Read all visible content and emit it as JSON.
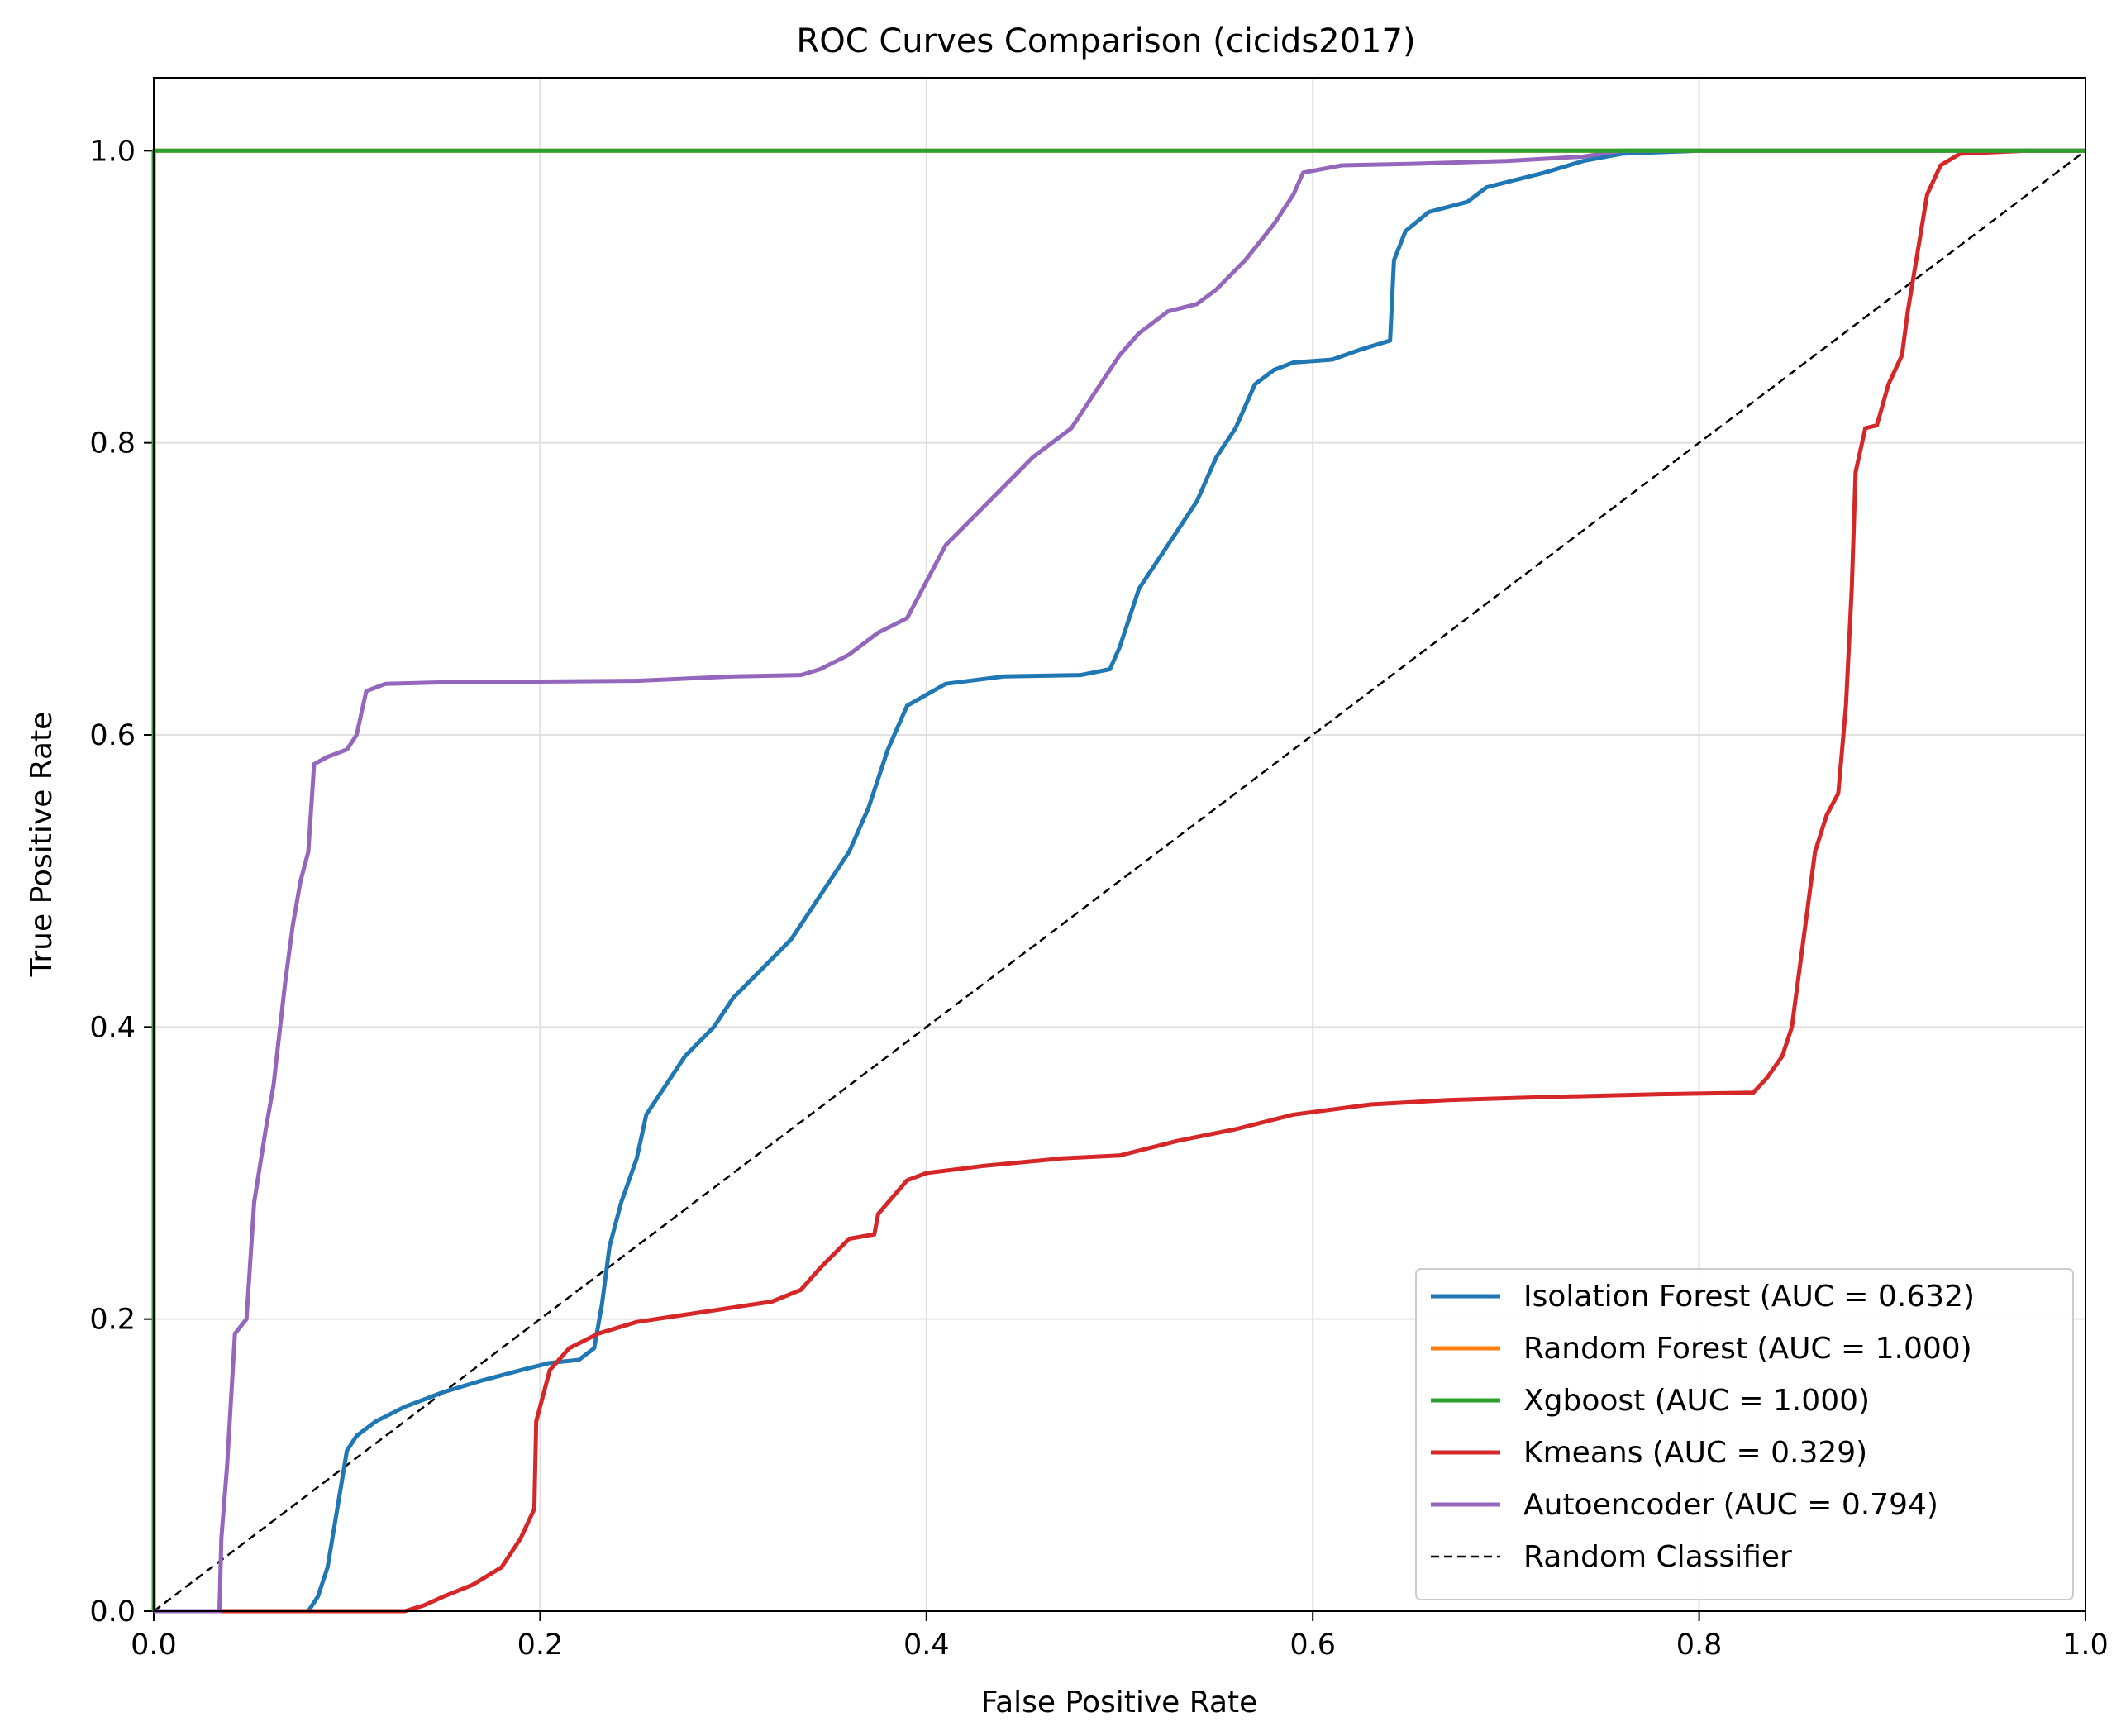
{
  "chart_data": {
    "type": "line",
    "title": "ROC Curves Comparison (cicids2017)",
    "xlabel": "False Positive Rate",
    "ylabel": "True Positive Rate",
    "xlim": [
      0.0,
      1.0
    ],
    "ylim": [
      0.0,
      1.05
    ],
    "xticks": [
      0.0,
      0.2,
      0.4,
      0.6,
      0.8,
      1.0
    ],
    "yticks": [
      0.0,
      0.2,
      0.4,
      0.6,
      0.8,
      1.0
    ],
    "xtick_labels": [
      "0.0",
      "0.2",
      "0.4",
      "0.6",
      "0.8",
      "1.0"
    ],
    "ytick_labels": [
      "0.0",
      "0.2",
      "0.4",
      "0.6",
      "0.8",
      "1.0"
    ],
    "grid": true,
    "legend_position": "lower-right",
    "series": [
      {
        "name": "Isolation Forest (AUC = 0.632)",
        "color": "#1f77b4",
        "dash": "solid",
        "points": [
          [
            0,
            0
          ],
          [
            0.08,
            0
          ],
          [
            0.085,
            0.01
          ],
          [
            0.09,
            0.03
          ],
          [
            0.095,
            0.07
          ],
          [
            0.1,
            0.11
          ],
          [
            0.105,
            0.12
          ],
          [
            0.115,
            0.13
          ],
          [
            0.13,
            0.14
          ],
          [
            0.15,
            0.15
          ],
          [
            0.17,
            0.158
          ],
          [
            0.19,
            0.165
          ],
          [
            0.205,
            0.17
          ],
          [
            0.22,
            0.172
          ],
          [
            0.228,
            0.18
          ],
          [
            0.232,
            0.21
          ],
          [
            0.236,
            0.25
          ],
          [
            0.242,
            0.28
          ],
          [
            0.25,
            0.31
          ],
          [
            0.255,
            0.34
          ],
          [
            0.265,
            0.36
          ],
          [
            0.275,
            0.38
          ],
          [
            0.29,
            0.4
          ],
          [
            0.3,
            0.42
          ],
          [
            0.315,
            0.44
          ],
          [
            0.33,
            0.46
          ],
          [
            0.345,
            0.49
          ],
          [
            0.36,
            0.52
          ],
          [
            0.37,
            0.55
          ],
          [
            0.38,
            0.59
          ],
          [
            0.39,
            0.62
          ],
          [
            0.41,
            0.635
          ],
          [
            0.44,
            0.64
          ],
          [
            0.48,
            0.641
          ],
          [
            0.495,
            0.645
          ],
          [
            0.5,
            0.66
          ],
          [
            0.51,
            0.7
          ],
          [
            0.52,
            0.72
          ],
          [
            0.53,
            0.74
          ],
          [
            0.54,
            0.76
          ],
          [
            0.55,
            0.79
          ],
          [
            0.56,
            0.81
          ],
          [
            0.57,
            0.84
          ],
          [
            0.58,
            0.85
          ],
          [
            0.59,
            0.855
          ],
          [
            0.61,
            0.857
          ],
          [
            0.625,
            0.864
          ],
          [
            0.64,
            0.87
          ],
          [
            0.642,
            0.925
          ],
          [
            0.648,
            0.945
          ],
          [
            0.66,
            0.958
          ],
          [
            0.68,
            0.965
          ],
          [
            0.69,
            0.975
          ],
          [
            0.72,
            0.985
          ],
          [
            0.74,
            0.993
          ],
          [
            0.76,
            0.998
          ],
          [
            0.8,
            1.0
          ],
          [
            1.0,
            1.0
          ]
        ]
      },
      {
        "name": "Random Forest (AUC = 1.000)",
        "color": "#ff7f0e",
        "dash": "solid",
        "points": [
          [
            0,
            0
          ],
          [
            0,
            1.0
          ],
          [
            1.0,
            1.0
          ]
        ]
      },
      {
        "name": "Xgboost (AUC = 1.000)",
        "color": "#2ca02c",
        "dash": "solid",
        "points": [
          [
            0,
            0
          ],
          [
            0,
            1.0
          ],
          [
            1.0,
            1.0
          ]
        ]
      },
      {
        "name": "Kmeans (AUC = 0.329)",
        "color": "#d62728",
        "dash": "solid",
        "points": [
          [
            0,
            0
          ],
          [
            0.13,
            0
          ],
          [
            0.14,
            0.004
          ],
          [
            0.15,
            0.01
          ],
          [
            0.165,
            0.018
          ],
          [
            0.18,
            0.03
          ],
          [
            0.19,
            0.05
          ],
          [
            0.197,
            0.07
          ],
          [
            0.198,
            0.13
          ],
          [
            0.205,
            0.165
          ],
          [
            0.215,
            0.18
          ],
          [
            0.23,
            0.19
          ],
          [
            0.25,
            0.198
          ],
          [
            0.27,
            0.202
          ],
          [
            0.29,
            0.206
          ],
          [
            0.32,
            0.212
          ],
          [
            0.335,
            0.22
          ],
          [
            0.345,
            0.235
          ],
          [
            0.36,
            0.255
          ],
          [
            0.373,
            0.258
          ],
          [
            0.375,
            0.272
          ],
          [
            0.39,
            0.295
          ],
          [
            0.4,
            0.3
          ],
          [
            0.43,
            0.305
          ],
          [
            0.47,
            0.31
          ],
          [
            0.5,
            0.312
          ],
          [
            0.53,
            0.322
          ],
          [
            0.56,
            0.33
          ],
          [
            0.59,
            0.34
          ],
          [
            0.63,
            0.347
          ],
          [
            0.67,
            0.35
          ],
          [
            0.72,
            0.352
          ],
          [
            0.78,
            0.354
          ],
          [
            0.828,
            0.355
          ],
          [
            0.835,
            0.365
          ],
          [
            0.843,
            0.38
          ],
          [
            0.848,
            0.4
          ],
          [
            0.852,
            0.44
          ],
          [
            0.856,
            0.48
          ],
          [
            0.86,
            0.52
          ],
          [
            0.866,
            0.545
          ],
          [
            0.872,
            0.56
          ],
          [
            0.876,
            0.62
          ],
          [
            0.879,
            0.7
          ],
          [
            0.881,
            0.78
          ],
          [
            0.886,
            0.81
          ],
          [
            0.892,
            0.812
          ],
          [
            0.898,
            0.84
          ],
          [
            0.905,
            0.86
          ],
          [
            0.908,
            0.89
          ],
          [
            0.913,
            0.93
          ],
          [
            0.918,
            0.97
          ],
          [
            0.925,
            0.99
          ],
          [
            0.935,
            0.998
          ],
          [
            0.97,
            1.0
          ],
          [
            1.0,
            1.0
          ]
        ]
      },
      {
        "name": "Autoencoder (AUC = 0.794)",
        "color": "#9467bd",
        "dash": "solid",
        "points": [
          [
            0,
            0
          ],
          [
            0.034,
            0
          ],
          [
            0.035,
            0.05
          ],
          [
            0.038,
            0.1
          ],
          [
            0.042,
            0.19
          ],
          [
            0.048,
            0.2
          ],
          [
            0.052,
            0.28
          ],
          [
            0.058,
            0.33
          ],
          [
            0.062,
            0.36
          ],
          [
            0.068,
            0.43
          ],
          [
            0.072,
            0.47
          ],
          [
            0.076,
            0.5
          ],
          [
            0.08,
            0.52
          ],
          [
            0.083,
            0.58
          ],
          [
            0.09,
            0.585
          ],
          [
            0.1,
            0.59
          ],
          [
            0.105,
            0.6
          ],
          [
            0.11,
            0.63
          ],
          [
            0.12,
            0.635
          ],
          [
            0.15,
            0.636
          ],
          [
            0.25,
            0.637
          ],
          [
            0.3,
            0.64
          ],
          [
            0.335,
            0.641
          ],
          [
            0.345,
            0.645
          ],
          [
            0.36,
            0.655
          ],
          [
            0.375,
            0.67
          ],
          [
            0.39,
            0.68
          ],
          [
            0.398,
            0.7
          ],
          [
            0.41,
            0.73
          ],
          [
            0.425,
            0.75
          ],
          [
            0.44,
            0.77
          ],
          [
            0.455,
            0.79
          ],
          [
            0.475,
            0.81
          ],
          [
            0.49,
            0.84
          ],
          [
            0.5,
            0.86
          ],
          [
            0.51,
            0.875
          ],
          [
            0.525,
            0.89
          ],
          [
            0.54,
            0.895
          ],
          [
            0.55,
            0.905
          ],
          [
            0.565,
            0.925
          ],
          [
            0.58,
            0.95
          ],
          [
            0.59,
            0.97
          ],
          [
            0.595,
            0.985
          ],
          [
            0.615,
            0.99
          ],
          [
            0.65,
            0.991
          ],
          [
            0.7,
            0.993
          ],
          [
            0.74,
            0.996
          ],
          [
            0.76,
            1.0
          ],
          [
            1.0,
            1.0
          ]
        ]
      },
      {
        "name": "Random Classifier",
        "color": "#000000",
        "dash": "dashed",
        "points": [
          [
            0,
            0
          ],
          [
            1.0,
            1.0
          ]
        ]
      }
    ]
  }
}
